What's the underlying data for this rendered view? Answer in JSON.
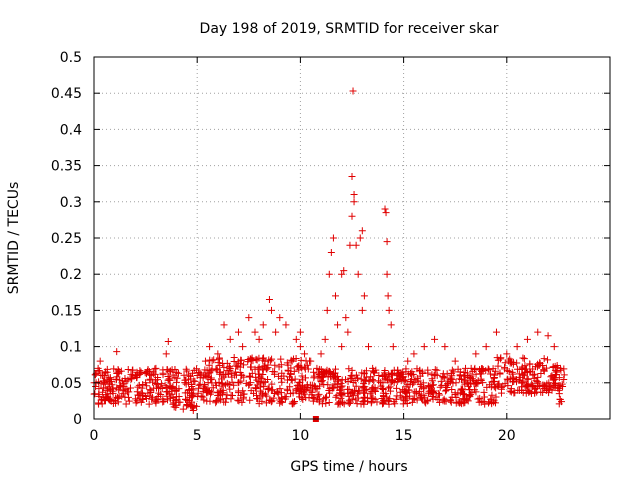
{
  "chart_data": {
    "type": "scatter",
    "title": "Day 198 of 2019, SRMTID for receiver skar",
    "xlabel": "GPS time / hours",
    "ylabel": "SRMTID / TECUs",
    "xlim": [
      0,
      25
    ],
    "ylim": [
      0,
      0.5
    ],
    "x_ticks": [
      0,
      5,
      10,
      15,
      20
    ],
    "x_tick_labels": [
      "0",
      "5",
      "10",
      "15",
      "20"
    ],
    "y_ticks": [
      0,
      0.05,
      0.1,
      0.15,
      0.2,
      0.25,
      0.3,
      0.35,
      0.4,
      0.45,
      0.5
    ],
    "y_tick_labels": [
      "0",
      "0.05",
      "0.1",
      "0.15",
      "0.2",
      "0.25",
      "0.3",
      "0.35",
      "0.4",
      "0.45",
      "0.5"
    ],
    "grid": true,
    "series_color": "#e00000",
    "marker": "plus",
    "background_band": {
      "x_start": 0,
      "x_end": 22.8,
      "y_low": 0.02,
      "y_high": 0.07
    },
    "points": [
      [
        0.1,
        0.05
      ],
      [
        0.2,
        0.07
      ],
      [
        0.3,
        0.08
      ],
      [
        0.5,
        0.06
      ],
      [
        0.8,
        0.04
      ],
      [
        1.1,
        0.093
      ],
      [
        1.5,
        0.03
      ],
      [
        2.0,
        0.06
      ],
      [
        2.5,
        0.05
      ],
      [
        3.0,
        0.07
      ],
      [
        3.5,
        0.09
      ],
      [
        3.6,
        0.107
      ],
      [
        4.0,
        0.04
      ],
      [
        4.5,
        0.02
      ],
      [
        5.0,
        0.06
      ],
      [
        5.4,
        0.08
      ],
      [
        5.6,
        0.1
      ],
      [
        6.0,
        0.09
      ],
      [
        6.3,
        0.13
      ],
      [
        6.6,
        0.11
      ],
      [
        7.0,
        0.12
      ],
      [
        7.2,
        0.1
      ],
      [
        7.5,
        0.14
      ],
      [
        7.8,
        0.12
      ],
      [
        8.0,
        0.11
      ],
      [
        8.2,
        0.13
      ],
      [
        8.5,
        0.165
      ],
      [
        8.6,
        0.15
      ],
      [
        8.8,
        0.12
      ],
      [
        9.0,
        0.14
      ],
      [
        9.3,
        0.13
      ],
      [
        9.6,
        0.08
      ],
      [
        9.8,
        0.11
      ],
      [
        10.0,
        0.12
      ],
      [
        10.0,
        0.1
      ],
      [
        10.2,
        0.09
      ],
      [
        10.5,
        0.08
      ],
      [
        10.8,
        0.07
      ],
      [
        11.0,
        0.09
      ],
      [
        11.2,
        0.11
      ],
      [
        11.3,
        0.15
      ],
      [
        11.4,
        0.2
      ],
      [
        11.5,
        0.23
      ],
      [
        11.6,
        0.25
      ],
      [
        11.7,
        0.17
      ],
      [
        11.8,
        0.13
      ],
      [
        12.0,
        0.1
      ],
      [
        12.0,
        0.2
      ],
      [
        12.1,
        0.205
      ],
      [
        12.2,
        0.14
      ],
      [
        12.3,
        0.12
      ],
      [
        12.4,
        0.24
      ],
      [
        12.5,
        0.28
      ],
      [
        12.5,
        0.335
      ],
      [
        12.55,
        0.453
      ],
      [
        12.6,
        0.3
      ],
      [
        12.6,
        0.31
      ],
      [
        12.7,
        0.24
      ],
      [
        12.8,
        0.2
      ],
      [
        12.9,
        0.25
      ],
      [
        13.0,
        0.26
      ],
      [
        13.0,
        0.15
      ],
      [
        13.1,
        0.17
      ],
      [
        13.3,
        0.1
      ],
      [
        13.5,
        0.07
      ],
      [
        13.8,
        0.06
      ],
      [
        14.0,
        0.05
      ],
      [
        14.1,
        0.29
      ],
      [
        14.15,
        0.285
      ],
      [
        14.2,
        0.245
      ],
      [
        14.2,
        0.2
      ],
      [
        14.25,
        0.17
      ],
      [
        14.3,
        0.15
      ],
      [
        14.4,
        0.13
      ],
      [
        14.5,
        0.1
      ],
      [
        14.8,
        0.06
      ],
      [
        15.2,
        0.08
      ],
      [
        15.5,
        0.09
      ],
      [
        16.0,
        0.1
      ],
      [
        16.5,
        0.11
      ],
      [
        17.0,
        0.1
      ],
      [
        17.5,
        0.08
      ],
      [
        18.0,
        0.07
      ],
      [
        18.5,
        0.09
      ],
      [
        19.0,
        0.1
      ],
      [
        19.5,
        0.12
      ],
      [
        20.0,
        0.09
      ],
      [
        20.2,
        0.08
      ],
      [
        20.5,
        0.1
      ],
      [
        21.0,
        0.11
      ],
      [
        21.5,
        0.12
      ],
      [
        22.0,
        0.115
      ],
      [
        22.3,
        0.1
      ],
      [
        22.6,
        0.07
      ],
      [
        10.75,
        0.0
      ]
    ]
  }
}
